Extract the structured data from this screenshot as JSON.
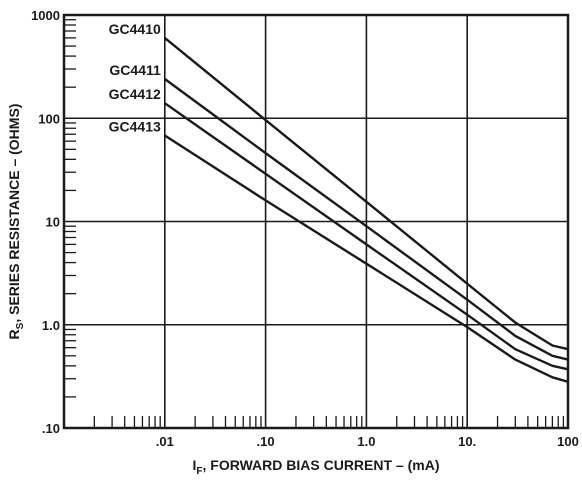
{
  "chart_data": {
    "type": "line",
    "x_scale": "log",
    "y_scale": "log",
    "xlim": [
      0.001,
      100
    ],
    "ylim": [
      0.1,
      1000
    ],
    "grid": true,
    "x_ticks": [
      {
        "value": 0.01,
        "label": ".01"
      },
      {
        "value": 0.1,
        "label": ".10"
      },
      {
        "value": 1,
        "label": "1.0"
      },
      {
        "value": 10,
        "label": "10."
      },
      {
        "value": 100,
        "label": "100"
      }
    ],
    "y_ticks": [
      {
        "value": 0.1,
        "label": ".10"
      },
      {
        "value": 1,
        "label": "1.0"
      },
      {
        "value": 10,
        "label": "10"
      },
      {
        "value": 100,
        "label": "100"
      },
      {
        "value": 1000,
        "label": "1000"
      }
    ],
    "xlabel": {
      "main": "I",
      "sub": "F",
      "rest": ", FORWARD BIAS CURRENT – (mA)"
    },
    "ylabel": {
      "main": "R",
      "sub": "S",
      "rest": ", SERIES RESISTANCE – (OHMS)"
    },
    "series": [
      {
        "name": "GC4410",
        "x": [
          0.01,
          0.1,
          1,
          10,
          30,
          70,
          100
        ],
        "y": [
          600,
          96,
          15.5,
          2.5,
          1.05,
          0.63,
          0.58
        ]
      },
      {
        "name": "GC4411",
        "x": [
          0.01,
          0.1,
          1,
          10,
          30,
          70,
          100
        ],
        "y": [
          240,
          46,
          9.0,
          1.75,
          0.78,
          0.5,
          0.46
        ]
      },
      {
        "name": "GC4412",
        "x": [
          0.01,
          0.1,
          1,
          10,
          30,
          70,
          100
        ],
        "y": [
          140,
          29,
          6.0,
          1.25,
          0.58,
          0.4,
          0.37
        ]
      },
      {
        "name": "GC4413",
        "x": [
          0.01,
          0.1,
          1,
          10,
          30,
          70,
          100
        ],
        "y": [
          68,
          16,
          3.9,
          0.95,
          0.46,
          0.31,
          0.28
        ]
      }
    ]
  }
}
